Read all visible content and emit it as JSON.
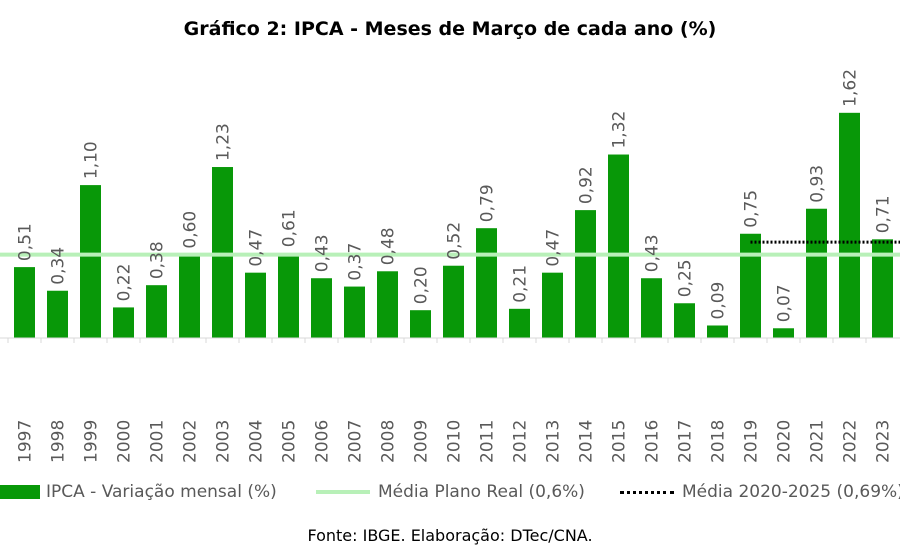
{
  "chart_data": {
    "type": "bar",
    "title": "Gráfico 2: IPCA - Meses de Março de cada ano (%)",
    "categories": [
      "1997",
      "1998",
      "1999",
      "2000",
      "2001",
      "2002",
      "2003",
      "2004",
      "2005",
      "2006",
      "2007",
      "2008",
      "2009",
      "2010",
      "2011",
      "2012",
      "2013",
      "2014",
      "2015",
      "2016",
      "2017",
      "2018",
      "2019",
      "2020",
      "2021",
      "2022",
      "2023"
    ],
    "value_labels": [
      "0,51",
      "0,34",
      "1,10",
      "0,22",
      "0,38",
      "0,60",
      "1,23",
      "0,47",
      "0,61",
      "0,43",
      "0,37",
      "0,48",
      "0,20",
      "0,52",
      "0,79",
      "0,21",
      "0,47",
      "0,92",
      "1,32",
      "0,43",
      "0,25",
      "0,09",
      "0,75",
      "0,07",
      "0,93",
      "1,62",
      "0,71"
    ],
    "series": [
      {
        "name": "IPCA - Variação mensal (%)",
        "color": "#089808",
        "values": [
          0.51,
          0.34,
          1.1,
          0.22,
          0.38,
          0.6,
          1.23,
          0.47,
          0.61,
          0.43,
          0.37,
          0.48,
          0.2,
          0.52,
          0.79,
          0.21,
          0.47,
          0.92,
          1.32,
          0.43,
          0.25,
          0.09,
          0.75,
          0.07,
          0.93,
          1.62,
          0.71
        ]
      }
    ],
    "reference_lines": [
      {
        "name": "Média Plano Real (0,6%)",
        "value": 0.6,
        "color": "#b8f0b8",
        "style": "solid",
        "from": "1997"
      },
      {
        "name": "Média 2020-2025 (0,69%)",
        "value": 0.69,
        "color": "#000000",
        "style": "dotted",
        "from": "2019"
      }
    ],
    "ylim": [
      0,
      1.7
    ],
    "grid": false,
    "legend_position": "bottom",
    "source": "Fonte: IBGE. Elaboração: DTec/CNA."
  }
}
